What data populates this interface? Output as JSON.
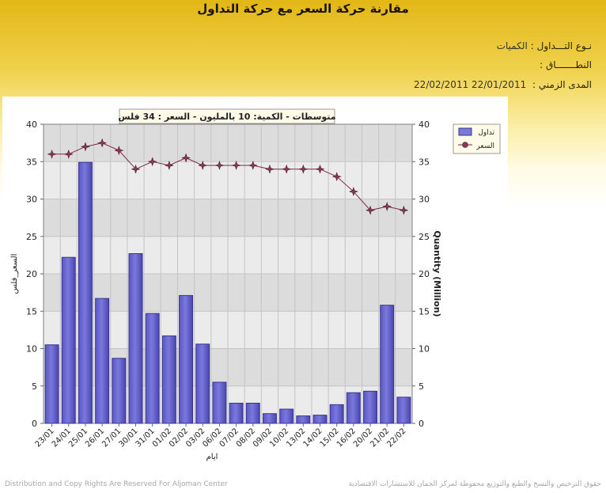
{
  "header": {
    "title": "مقارنة حركة السعر مع حركة التداول",
    "trade_type_label": "نـوع التـــداول :",
    "trade_type_value": "الكميات",
    "range_label": "النطـــــــاق :",
    "period_label": "المدى الزمني :",
    "period_from": "22/01/2011",
    "period_to": "22/02/2011"
  },
  "colors": {
    "bar_fill": "#7b78dd",
    "bar_stroke": "#3a3690",
    "line": "#7a2a46",
    "marker": "#8a3a58",
    "plot_band": "#dcdcdc",
    "plot_band_alt": "#ebebeb",
    "grid": "#c4c4c4"
  },
  "chart_data": {
    "type": "bar",
    "title": "متوسطات - الكمية: 10 بالمليون   - السعر : 34 فلس",
    "xlabel": "ايام",
    "ylabel_left": "السعر_فلس",
    "ylabel_right": "Quantity (Million)",
    "ylim": [
      0,
      40
    ],
    "yticks": [
      0,
      5,
      10,
      15,
      20,
      25,
      30,
      35,
      40
    ],
    "grid": true,
    "legend_position": "top-right",
    "categories": [
      "23/01",
      "24/01",
      "25/01",
      "26/01",
      "27/01",
      "30/01",
      "31/01",
      "01/02",
      "02/02",
      "03/02",
      "06/02",
      "07/02",
      "08/02",
      "09/02",
      "10/02",
      "13/02",
      "14/02",
      "15/02",
      "16/02",
      "20/02",
      "21/02",
      "22/02"
    ],
    "series": [
      {
        "name": "تداول",
        "kind": "bar",
        "axis": "right",
        "values": [
          10.5,
          22.2,
          34.9,
          16.7,
          8.7,
          22.7,
          14.7,
          11.7,
          17.1,
          10.6,
          5.5,
          2.7,
          2.7,
          1.3,
          1.9,
          1.0,
          1.1,
          2.5,
          4.1,
          4.3,
          15.8,
          3.5
        ]
      },
      {
        "name": "السعر",
        "kind": "line",
        "axis": "left",
        "values": [
          36,
          36,
          37,
          37.5,
          36.5,
          34,
          35,
          34.5,
          35.5,
          34.5,
          34.5,
          34.5,
          34.5,
          34,
          34,
          34,
          34,
          33,
          31,
          28.5,
          29,
          28.5
        ]
      }
    ]
  },
  "footer": {
    "left": "Distribution and Copy Rights Are Reserved For Aljoman Center",
    "right": "حقوق الترخيص والنسخ والطبع والتوزيع محفوظة لمركز الجمان للاستشارات الاقتصادية"
  }
}
